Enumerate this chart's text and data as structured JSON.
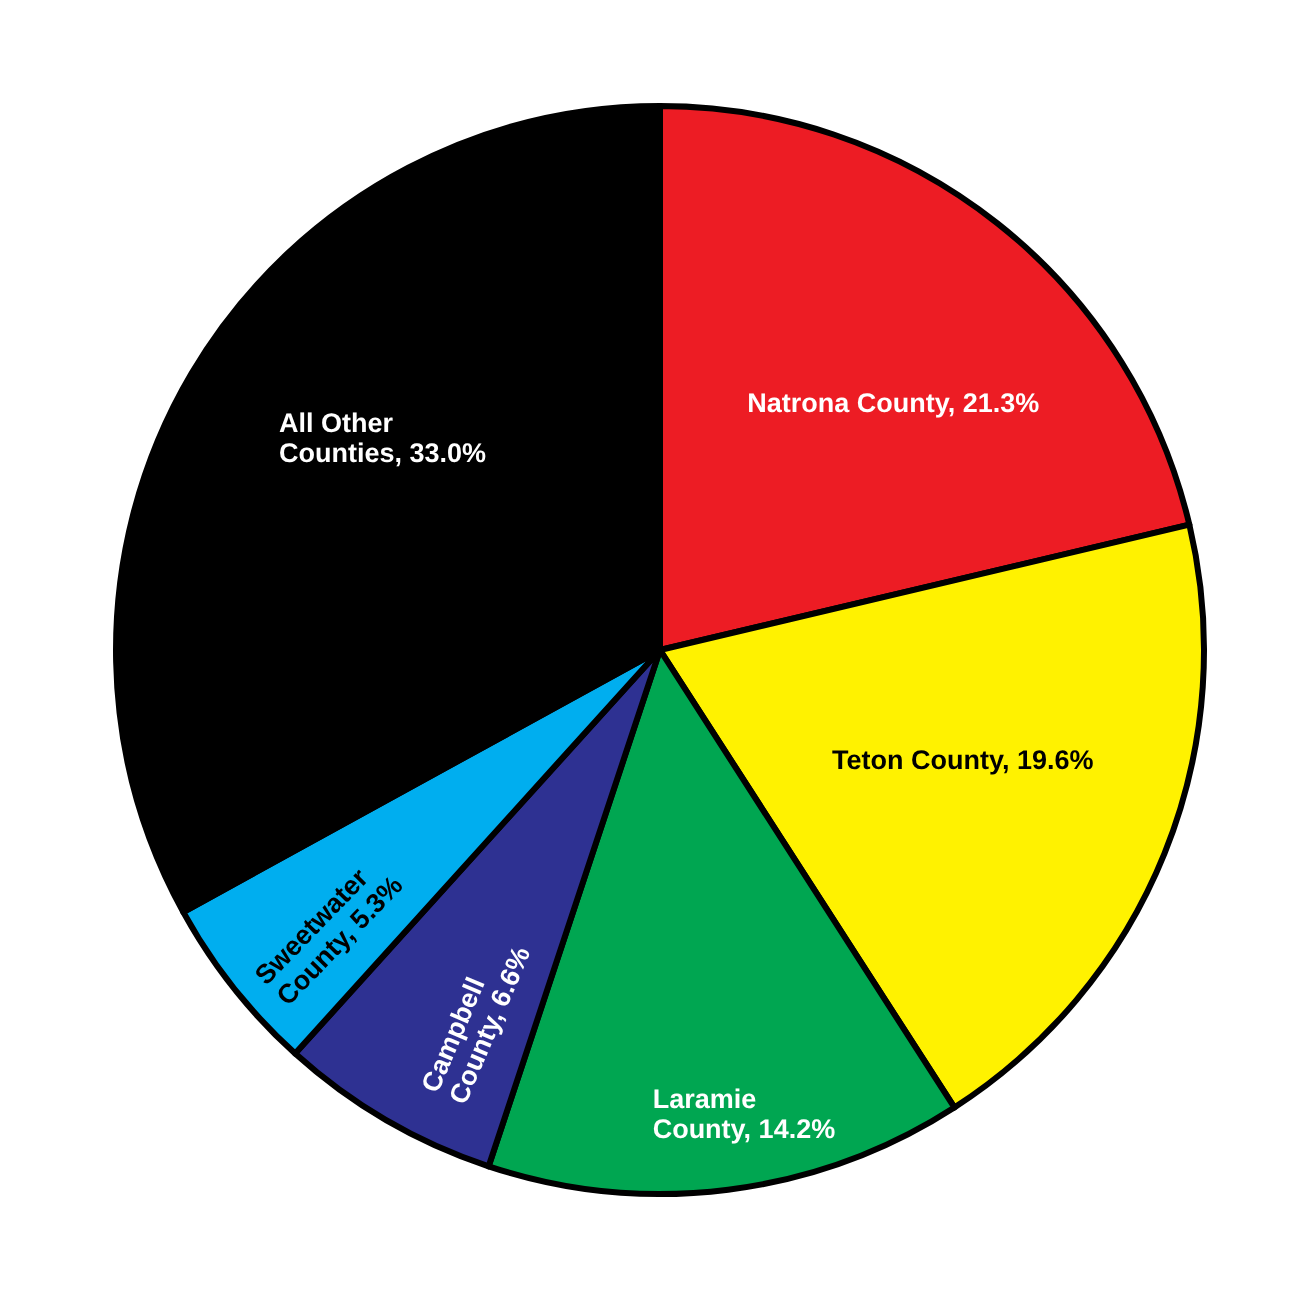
{
  "chart_data": {
    "type": "pie",
    "categories": [
      "Natrona County",
      "Teton County",
      "Laramie County",
      "Campbell County",
      "Sweetwater County",
      "All Other Counties"
    ],
    "values": [
      21.3,
      19.6,
      14.2,
      6.6,
      5.3,
      33.0
    ],
    "colors": [
      "#ed1c24",
      "#fff200",
      "#00a651",
      "#2e3192",
      "#00aeef",
      "#000000"
    ],
    "value_labels": [
      "21.3%",
      "19.6%",
      "14.2%",
      "6.6%",
      "5.3%",
      "33.0%"
    ]
  }
}
